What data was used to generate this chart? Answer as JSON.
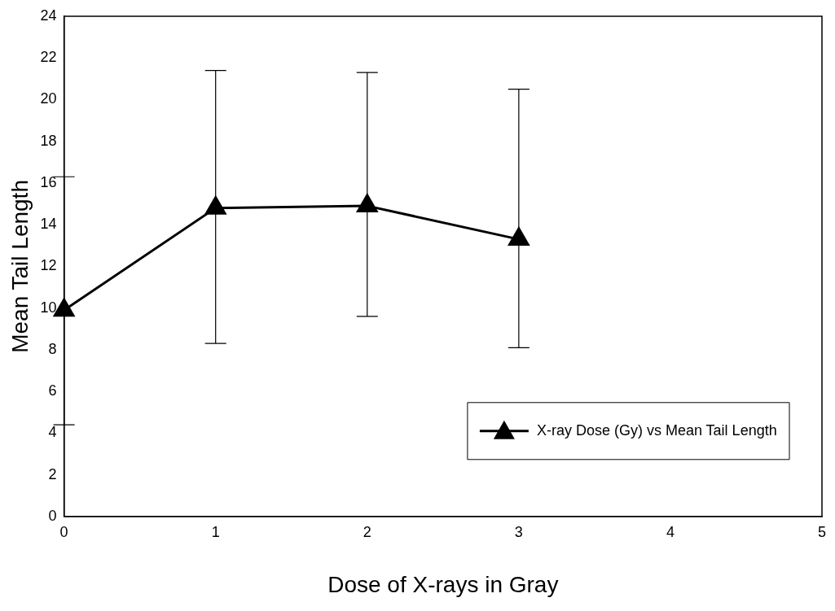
{
  "chart_data": {
    "type": "line",
    "xlabel": "Dose of X-rays in Gray",
    "ylabel": "Mean Tail Length",
    "x": [
      0,
      1,
      2,
      3
    ],
    "series": [
      {
        "name": "X-ray Dose (Gy) vs Mean Tail Length",
        "color": "#000000",
        "values": [
          9.9,
          14.8,
          14.9,
          13.3
        ],
        "errors": [
          [
            4.4,
            16.3
          ],
          [
            8.3,
            21.4
          ],
          [
            9.6,
            21.3
          ],
          [
            8.1,
            20.5
          ]
        ]
      }
    ],
    "xlim": [
      0,
      5
    ],
    "xticks": [
      0,
      1,
      2,
      3,
      4,
      5
    ],
    "ylim": [
      0,
      24
    ],
    "yticks": [
      0,
      2,
      4,
      6,
      8,
      10,
      12,
      14,
      16,
      18,
      20,
      22,
      24
    ],
    "grid": false,
    "legend": "bottom right",
    "marker": "triangle",
    "line_style": "solid"
  }
}
